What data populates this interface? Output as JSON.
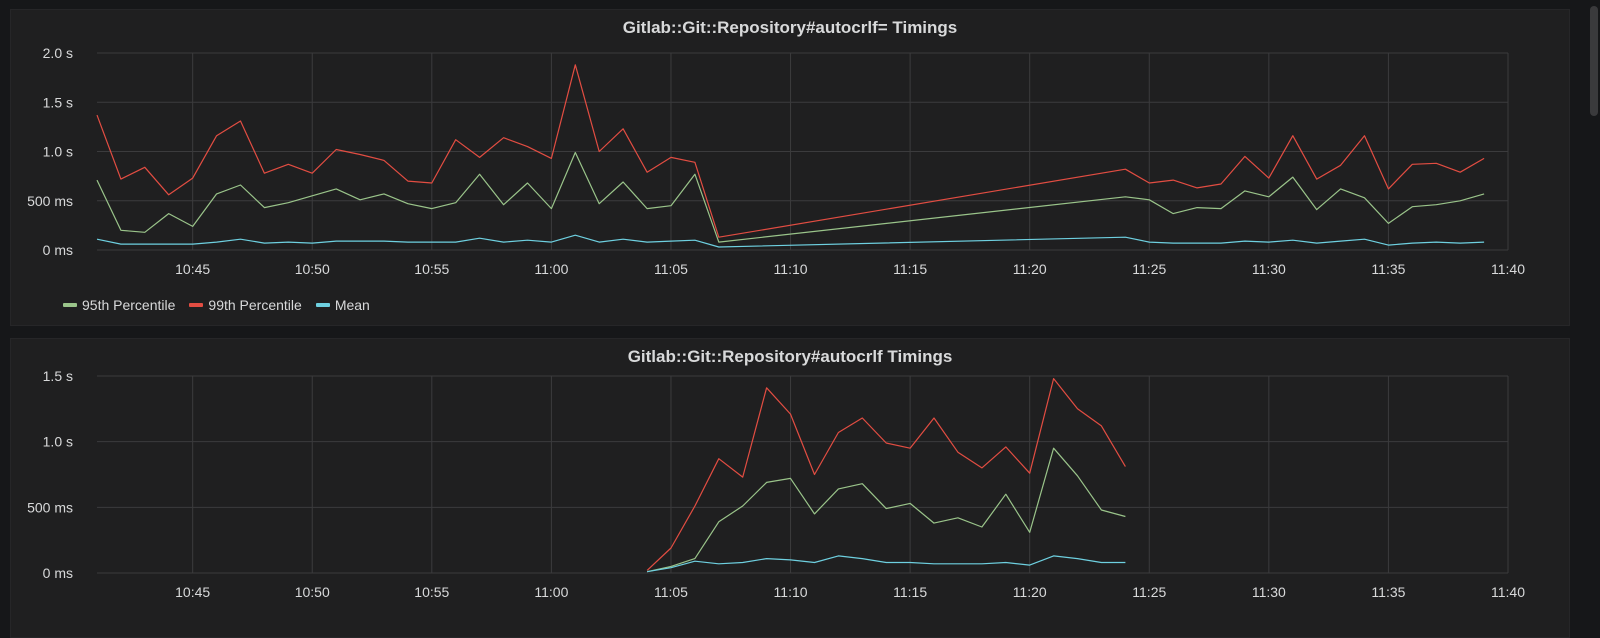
{
  "colors": {
    "p95": "#9ac48a",
    "p99": "#e24d42",
    "mean": "#6ed0e0"
  },
  "legend": [
    {
      "label": "95th Percentile",
      "color": "#9ac48a"
    },
    {
      "label": "99th Percentile",
      "color": "#e24d42"
    },
    {
      "label": "Mean",
      "color": "#6ed0e0"
    }
  ],
  "chart_data": [
    {
      "type": "line",
      "title": "Gitlab::Git::Repository#autocrlf= Timings",
      "x_ticks": [
        "10:45",
        "10:50",
        "10:55",
        "11:00",
        "11:05",
        "11:10",
        "11:15",
        "11:20",
        "11:25",
        "11:30",
        "11:35",
        "11:40"
      ],
      "y_ticks": [
        "0 ms",
        "500 ms",
        "1.0 s",
        "1.5 s",
        "2.0 s"
      ],
      "xlim": [
        "10:41",
        "11:40"
      ],
      "ylim": [
        0,
        2000
      ],
      "y_unit": "ms",
      "grid": true,
      "legend_position": "bottom-left",
      "x": [
        "10:41",
        "10:42",
        "10:43",
        "10:44",
        "10:45",
        "10:46",
        "10:47",
        "10:48",
        "10:49",
        "10:50",
        "10:51",
        "10:52",
        "10:53",
        "10:54",
        "10:55",
        "10:56",
        "10:57",
        "10:58",
        "10:59",
        "11:00",
        "11:01",
        "11:02",
        "11:03",
        "11:04",
        "11:05",
        "11:06",
        "11:07",
        "11:24",
        "11:25",
        "11:26",
        "11:27",
        "11:28",
        "11:29",
        "11:30",
        "11:31",
        "11:32",
        "11:33",
        "11:34",
        "11:35",
        "11:36",
        "11:37",
        "11:38",
        "11:39"
      ],
      "series": [
        {
          "name": "95th Percentile",
          "color": "#9ac48a",
          "values": [
            710,
            200,
            180,
            370,
            240,
            570,
            660,
            430,
            480,
            550,
            620,
            510,
            570,
            470,
            420,
            480,
            770,
            460,
            680,
            420,
            990,
            470,
            690,
            420,
            450,
            770,
            80,
            540,
            510,
            370,
            430,
            420,
            600,
            540,
            740,
            410,
            620,
            530,
            270,
            440,
            460,
            500,
            570
          ]
        },
        {
          "name": "99th Percentile",
          "color": "#e24d42",
          "values": [
            1370,
            720,
            840,
            560,
            730,
            1160,
            1310,
            780,
            870,
            780,
            1020,
            970,
            910,
            700,
            680,
            1120,
            940,
            1140,
            1050,
            930,
            1880,
            1000,
            1230,
            790,
            940,
            890,
            130,
            820,
            680,
            710,
            630,
            670,
            950,
            730,
            1160,
            720,
            860,
            1160,
            620,
            870,
            880,
            790,
            930
          ]
        },
        {
          "name": "Mean",
          "color": "#6ed0e0",
          "values": [
            110,
            60,
            60,
            60,
            60,
            80,
            110,
            70,
            80,
            70,
            90,
            90,
            90,
            80,
            80,
            80,
            120,
            80,
            100,
            80,
            150,
            80,
            110,
            80,
            90,
            100,
            30,
            130,
            80,
            70,
            70,
            70,
            90,
            80,
            100,
            70,
            90,
            110,
            50,
            70,
            80,
            70,
            80
          ]
        }
      ]
    },
    {
      "type": "line",
      "title": "Gitlab::Git::Repository#autocrlf Timings",
      "x_ticks": [
        "10:45",
        "10:50",
        "10:55",
        "11:00",
        "11:05",
        "11:10",
        "11:15",
        "11:20",
        "11:25",
        "11:30",
        "11:35",
        "11:40"
      ],
      "y_ticks": [
        "0 ms",
        "500 ms",
        "1.0 s",
        "1.5 s"
      ],
      "xlim": [
        "10:41",
        "11:40"
      ],
      "ylim": [
        0,
        1500
      ],
      "y_unit": "ms",
      "grid": true,
      "x": [
        "11:04",
        "11:05",
        "11:06",
        "11:07",
        "11:08",
        "11:09",
        "11:10",
        "11:11",
        "11:12",
        "11:13",
        "11:14",
        "11:15",
        "11:16",
        "11:17",
        "11:18",
        "11:19",
        "11:20",
        "11:21",
        "11:22",
        "11:23",
        "11:24"
      ],
      "series": [
        {
          "name": "95th Percentile",
          "color": "#9ac48a",
          "values": [
            10,
            50,
            110,
            390,
            510,
            690,
            720,
            450,
            640,
            680,
            490,
            530,
            380,
            420,
            350,
            600,
            310,
            950,
            740,
            480,
            430
          ]
        },
        {
          "name": "99th Percentile",
          "color": "#e24d42",
          "values": [
            20,
            190,
            510,
            870,
            730,
            1410,
            1210,
            750,
            1070,
            1180,
            990,
            950,
            1180,
            920,
            800,
            960,
            760,
            1480,
            1250,
            1120,
            810
          ]
        },
        {
          "name": "Mean",
          "color": "#6ed0e0",
          "values": [
            10,
            40,
            90,
            70,
            80,
            110,
            100,
            80,
            130,
            110,
            80,
            80,
            70,
            70,
            70,
            80,
            60,
            130,
            110,
            80,
            80
          ]
        }
      ]
    }
  ]
}
